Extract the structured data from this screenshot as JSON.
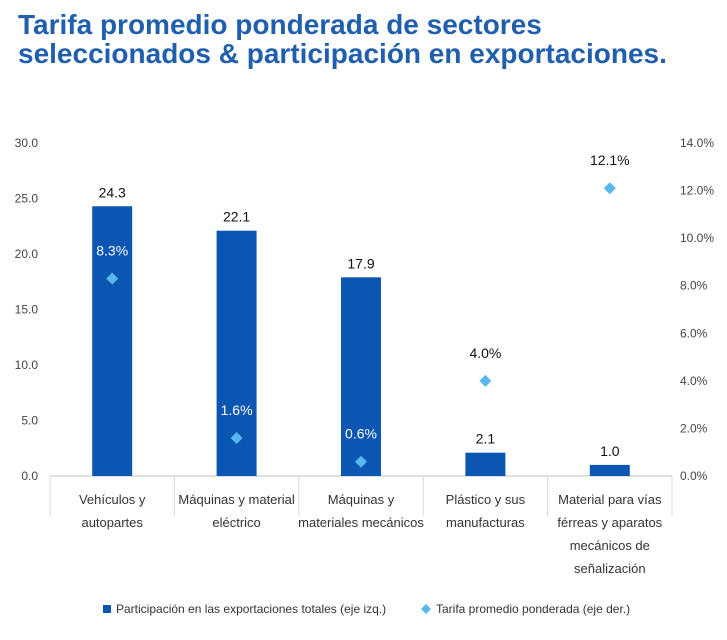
{
  "title": {
    "line1": "Tarifa promedio ponderada de sectores",
    "line2": "seleccionados & participación en exportaciones."
  },
  "colors": {
    "title": "#1f5fae",
    "bar": "#0b56b3",
    "diamond": "#57b8ef",
    "axis": "#bfbfbf",
    "grid_separator": "#d9d9d9"
  },
  "chart_data": {
    "type": "bar",
    "categories": [
      [
        "Vehículos y",
        "autopartes"
      ],
      [
        "Máquinas y material",
        "eléctrico"
      ],
      [
        "Máquinas y",
        "materiales mecánicos"
      ],
      [
        "Plástico y sus",
        "manufacturas"
      ],
      [
        "Material para vías",
        "férreas y aparatos",
        "mecánicos de",
        "señalización"
      ]
    ],
    "series": [
      {
        "name": "Participación en las exportaciones totales (eje izq.)",
        "kind": "bar",
        "axis": "left",
        "values": [
          24.3,
          22.1,
          17.9,
          2.1,
          1.0
        ],
        "labels": [
          "24.3",
          "22.1",
          "17.9",
          "2.1",
          "1.0"
        ]
      },
      {
        "name": "Tarifa promedio ponderada (eje der.)",
        "kind": "marker",
        "axis": "right",
        "values": [
          8.3,
          1.6,
          0.6,
          4.0,
          12.1
        ],
        "labels": [
          "8.3%",
          "1.6%",
          "0.6%",
          "4.0%",
          "12.1%"
        ]
      }
    ],
    "left_axis": {
      "ylim": [
        0,
        30
      ],
      "ticks": [
        "0.0",
        "5.0",
        "10.0",
        "15.0",
        "20.0",
        "25.0",
        "30.0"
      ]
    },
    "right_axis": {
      "ylim": [
        0,
        14
      ],
      "ticks": [
        "0.0%",
        "2.0%",
        "4.0%",
        "6.0%",
        "8.0%",
        "10.0%",
        "12.0%",
        "14.0%"
      ]
    },
    "legend_position": "bottom",
    "grid": false
  }
}
